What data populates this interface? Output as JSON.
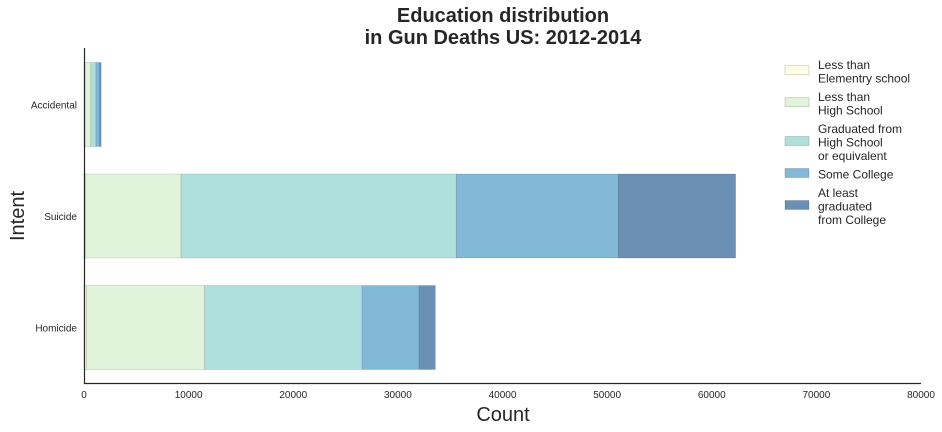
{
  "chart_data": {
    "type": "bar",
    "orientation": "horizontal",
    "stacked": true,
    "title": [
      "Education distribution",
      "in Gun Deaths US: 2012-2014"
    ],
    "xlabel": "Count",
    "ylabel": "Intent",
    "xlim": [
      0,
      80000
    ],
    "xticks": [
      "0",
      "10000",
      "20000",
      "30000",
      "40000",
      "50000",
      "60000",
      "70000",
      "80000"
    ],
    "categories": [
      "Accidental",
      "Suicide",
      "Homicide"
    ],
    "grid": false,
    "legend_position": "top-right",
    "series": [
      {
        "name": [
          "Less than",
          "Elementry school"
        ],
        "color": "#ffffe5",
        "values": [
          90,
          130,
          230
        ]
      },
      {
        "name": [
          "Less than",
          "High School"
        ],
        "color": "#e0f3db",
        "values": [
          560,
          9150,
          11300
        ]
      },
      {
        "name": [
          "Graduated from",
          "High School",
          "or equivalent"
        ],
        "color": "#b0e0dc",
        "values": [
          500,
          26300,
          15050
        ]
      },
      {
        "name": [
          "Some College"
        ],
        "color": "#82b8d8",
        "values": [
          350,
          15500,
          5450
        ]
      },
      {
        "name": [
          "At least",
          "graduated",
          "from College"
        ],
        "color": "#6b8fb5",
        "values": [
          140,
          11200,
          1550
        ]
      }
    ]
  }
}
